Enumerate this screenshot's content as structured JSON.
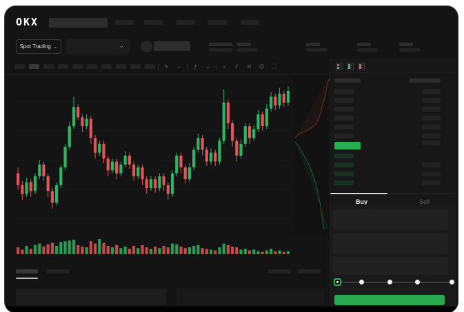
{
  "app": {
    "logo_text": "OKX"
  },
  "colors": {
    "background": "#141414",
    "panel": "#171717",
    "up_green": "#2db464",
    "down_red": "#e25558",
    "button_green": "#2aa850",
    "mid_price_green": "#27ae52",
    "active_tab_underline": "#d9d9d9"
  },
  "market_bar": {
    "market_selector_label": "Spot Trading",
    "market_selector_chevron": "⌄",
    "pair_selector_chevron": "⌄"
  },
  "toolbar": {
    "timeframe_slots": 10,
    "icons": [
      {
        "name": "indicator-icon",
        "glyph": "∿"
      },
      {
        "name": "indicator-chevron-icon",
        "glyph": "⌄"
      },
      {
        "name": "fx-icon",
        "glyph": "ƒ"
      },
      {
        "name": "chart-type-chevron-icon",
        "glyph": "⌄"
      },
      {
        "name": "line-style-icon",
        "glyph": "≈"
      },
      {
        "name": "compare-icon",
        "glyph": "⫽"
      },
      {
        "name": "camera-icon",
        "glyph": "⧇"
      },
      {
        "name": "settings-icon",
        "glyph": "◎"
      },
      {
        "name": "fullscreen-icon",
        "glyph": "⛶"
      }
    ]
  },
  "orderbook": {
    "view_modes": [
      "combined-book",
      "bids-only",
      "asks-only"
    ],
    "ask_rows": 6,
    "bid_rows": 4,
    "right_column_rows": 10,
    "mid_price_highlighted": true
  },
  "trade_panel": {
    "tabs": [
      {
        "label": "Buy",
        "active": true
      },
      {
        "label": "Sell",
        "active": false
      }
    ],
    "input_fields": 3,
    "slider": {
      "stops": 5,
      "selected_index": 0
    },
    "submit_color": "#2aa850"
  },
  "chart_data": {
    "type": "candlestick",
    "title": "",
    "xlabel": "",
    "ylabel": "",
    "axis_labels_visible": false,
    "grid": true,
    "up_color": "#2db464",
    "down_color": "#e25558",
    "scale": "normalized 0-100 (no axis labels rendered in UI)",
    "candles_ohlc": [
      [
        38,
        42,
        27,
        30
      ],
      [
        30,
        33,
        20,
        24
      ],
      [
        24,
        35,
        22,
        32
      ],
      [
        32,
        34,
        22,
        26
      ],
      [
        26,
        38,
        24,
        36
      ],
      [
        36,
        47,
        34,
        44
      ],
      [
        44,
        46,
        33,
        36
      ],
      [
        36,
        38,
        22,
        26
      ],
      [
        26,
        28,
        14,
        18
      ],
      [
        18,
        32,
        16,
        30
      ],
      [
        30,
        44,
        28,
        42
      ],
      [
        42,
        58,
        40,
        56
      ],
      [
        56,
        73,
        54,
        70
      ],
      [
        70,
        90,
        68,
        83
      ],
      [
        83,
        85,
        74,
        76
      ],
      [
        76,
        78,
        66,
        70
      ],
      [
        70,
        78,
        68,
        75
      ],
      [
        75,
        77,
        58,
        62
      ],
      [
        62,
        64,
        48,
        52
      ],
      [
        52,
        60,
        50,
        58
      ],
      [
        58,
        60,
        45,
        48
      ],
      [
        48,
        50,
        36,
        40
      ],
      [
        40,
        48,
        38,
        46
      ],
      [
        46,
        48,
        34,
        38
      ],
      [
        38,
        46,
        36,
        44
      ],
      [
        44,
        53,
        42,
        50
      ],
      [
        50,
        52,
        41,
        44
      ],
      [
        44,
        46,
        33,
        36
      ],
      [
        36,
        44,
        34,
        42
      ],
      [
        42,
        44,
        30,
        34
      ],
      [
        34,
        36,
        24,
        28
      ],
      [
        28,
        36,
        26,
        34
      ],
      [
        34,
        36,
        25,
        28
      ],
      [
        28,
        38,
        26,
        36
      ],
      [
        36,
        38,
        26,
        30
      ],
      [
        30,
        32,
        20,
        24
      ],
      [
        24,
        40,
        22,
        38
      ],
      [
        38,
        52,
        36,
        50
      ],
      [
        50,
        52,
        38,
        42
      ],
      [
        42,
        44,
        31,
        34
      ],
      [
        34,
        45,
        32,
        42
      ],
      [
        42,
        56,
        40,
        54
      ],
      [
        54,
        65,
        52,
        62
      ],
      [
        62,
        64,
        50,
        54
      ],
      [
        54,
        56,
        43,
        46
      ],
      [
        46,
        55,
        44,
        52
      ],
      [
        52,
        54,
        43,
        46
      ],
      [
        46,
        62,
        44,
        60
      ],
      [
        60,
        95,
        58,
        86
      ],
      [
        86,
        88,
        68,
        72
      ],
      [
        72,
        74,
        56,
        60
      ],
      [
        60,
        62,
        46,
        50
      ],
      [
        50,
        61,
        48,
        58
      ],
      [
        58,
        72,
        56,
        70
      ],
      [
        70,
        72,
        58,
        62
      ],
      [
        62,
        71,
        60,
        68
      ],
      [
        68,
        81,
        66,
        78
      ],
      [
        78,
        80,
        67,
        70
      ],
      [
        70,
        85,
        68,
        82
      ],
      [
        82,
        93,
        80,
        90
      ],
      [
        90,
        92,
        81,
        84
      ],
      [
        84,
        96,
        82,
        92
      ],
      [
        92,
        94,
        83,
        86
      ],
      [
        86,
        97,
        84,
        94
      ]
    ],
    "volume": [
      45,
      30,
      55,
      35,
      60,
      70,
      50,
      65,
      75,
      55,
      80,
      85,
      90,
      95,
      60,
      50,
      45,
      85,
      70,
      100,
      75,
      55,
      45,
      60,
      40,
      50,
      35,
      55,
      40,
      60,
      45,
      35,
      50,
      40,
      55,
      45,
      70,
      65,
      50,
      40,
      45,
      55,
      60,
      40,
      35,
      30,
      25,
      45,
      70,
      60,
      50,
      45,
      30,
      35,
      25,
      30,
      20,
      15,
      25,
      35,
      20,
      25,
      15,
      20
    ]
  },
  "depth_profile": {
    "asks_line": [
      [
        1,
        0.02
      ],
      [
        0.93,
        0.06
      ],
      [
        0.88,
        0.14
      ],
      [
        0.8,
        0.2
      ],
      [
        0.72,
        0.27
      ],
      [
        0.62,
        0.32
      ],
      [
        0.45,
        0.35
      ],
      [
        0.28,
        0.37
      ],
      [
        0.12,
        0.39
      ],
      [
        0.05,
        0.41
      ]
    ],
    "bids_line": [
      [
        0.05,
        0.43
      ],
      [
        0.18,
        0.47
      ],
      [
        0.3,
        0.52
      ],
      [
        0.42,
        0.57
      ],
      [
        0.52,
        0.63
      ],
      [
        0.62,
        0.7
      ],
      [
        0.7,
        0.78
      ],
      [
        0.76,
        0.86
      ],
      [
        0.8,
        0.93
      ],
      [
        0.85,
        1
      ]
    ]
  }
}
